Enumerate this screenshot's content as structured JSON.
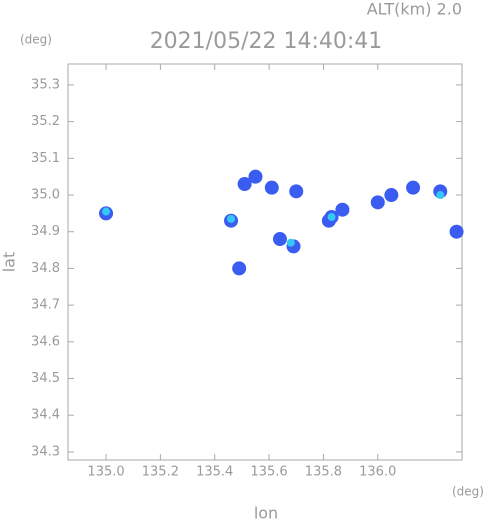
{
  "chart_data": {
    "type": "scatter",
    "title": "2021/05/22 14:40:41",
    "subtitle": "ALT(km) 2.0",
    "x_label": "lon",
    "y_label": "lat",
    "x_unit": "(deg)",
    "y_unit": "(deg)",
    "xlim": [
      134.86,
      136.31
    ],
    "ylim": [
      34.278,
      35.357
    ],
    "xticks": [
      {
        "value": 135,
        "label": "135.0"
      },
      135.2,
      135.4,
      135.6,
      135.8,
      {
        "value": 136,
        "label": "136.0"
      }
    ],
    "yticks": [
      34.3,
      34.4,
      34.5,
      34.6,
      34.7,
      34.8,
      34.9,
      {
        "value": 35,
        "label": "35.0"
      },
      35.1,
      35.2,
      35.3
    ],
    "series": [
      {
        "color": "#3a5cf0",
        "x": [
          135.0,
          135.46,
          135.51,
          135.55,
          135.61,
          135.7,
          135.69,
          135.64,
          135.83,
          135.87,
          136.0,
          136.05,
          136.13,
          136.23,
          136.29,
          135.49,
          135.82
        ],
        "y": [
          34.95,
          34.93,
          35.03,
          35.05,
          35.02,
          35.01,
          34.86,
          34.88,
          34.94,
          34.96,
          34.98,
          35.0,
          35.02,
          35.01,
          34.9,
          34.8,
          34.93
        ]
      },
      {
        "color": "#35c8f5",
        "x": [
          135.0,
          135.46,
          135.68,
          135.83,
          136.23
        ],
        "y": [
          34.955,
          34.935,
          34.87,
          34.94,
          35.0
        ]
      }
    ]
  }
}
